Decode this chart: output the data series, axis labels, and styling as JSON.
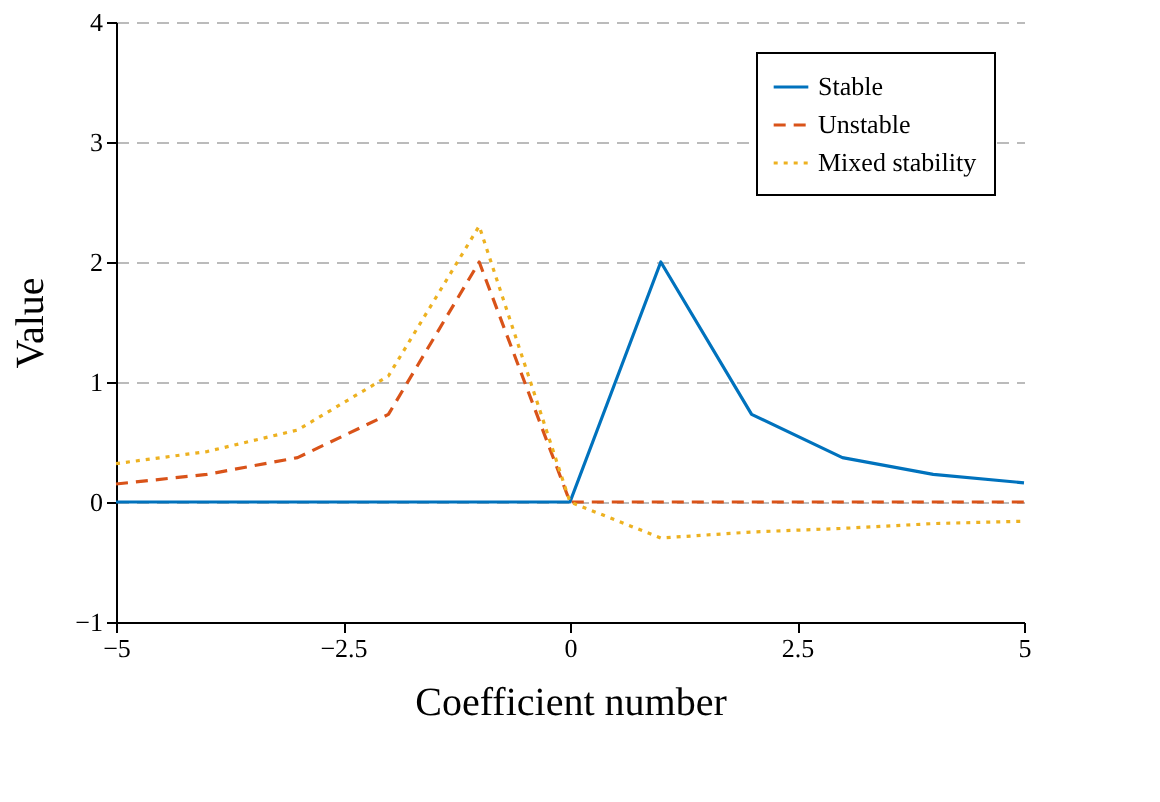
{
  "chart_data": {
    "type": "line",
    "xlabel": "Coefficient number",
    "ylabel": "Value",
    "x": [
      -5,
      -4,
      -3,
      -2,
      -1,
      0,
      1,
      2,
      3,
      4,
      5
    ],
    "series": [
      {
        "name": "Stable",
        "color": "#0072bd",
        "line_style": "solid",
        "values": [
          0,
          0,
          0,
          0,
          0,
          0,
          2,
          0.73,
          0.37,
          0.23,
          0.16
        ]
      },
      {
        "name": "Unstable",
        "color": "#d95319",
        "line_style": "dashed",
        "values": [
          0.15,
          0.23,
          0.37,
          0.73,
          2,
          0,
          0,
          0,
          0,
          0,
          0
        ]
      },
      {
        "name": "Mixed stability",
        "color": "#edb120",
        "line_style": "dotted",
        "values": [
          0.32,
          0.42,
          0.6,
          1.05,
          2.3,
          0,
          -0.3,
          -0.25,
          -0.22,
          -0.18,
          -0.16
        ]
      }
    ],
    "xlim": [
      -5,
      5
    ],
    "xticks": [
      -5,
      -2.5,
      0,
      2.5,
      5
    ],
    "ylim": [
      -1,
      4
    ],
    "yticks": [
      -1,
      0,
      1,
      2,
      3,
      4
    ],
    "grid": "y",
    "legend": "top right"
  }
}
